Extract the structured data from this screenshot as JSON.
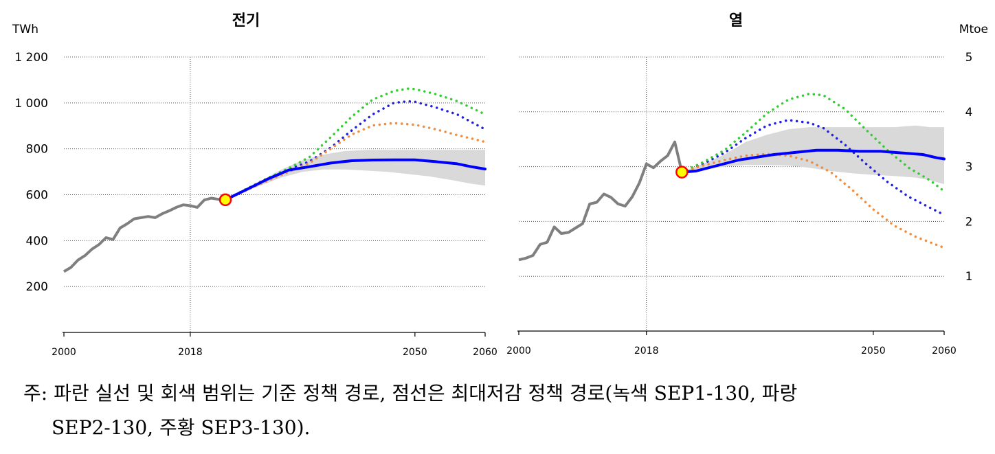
{
  "chart_data": [
    {
      "type": "line",
      "title": "전기",
      "unit": "TWh",
      "x_ticks": [
        "2000",
        "2018",
        "2050",
        "2060"
      ],
      "y_ticks": [
        "200",
        "400",
        "600",
        "800",
        "1 000",
        "1 200"
      ],
      "xlim": [
        2000,
        2060
      ],
      "ylim": [
        0,
        1200
      ],
      "grid": true,
      "marker": {
        "x": 2023,
        "y": 578
      },
      "history": {
        "x": [
          2000,
          2001,
          2002,
          2003,
          2004,
          2005,
          2006,
          2007,
          2008,
          2009,
          2010,
          2011,
          2012,
          2013,
          2014,
          2015,
          2016,
          2017,
          2018,
          2019,
          2020,
          2021,
          2022,
          2023
        ],
        "y": [
          265,
          283,
          315,
          335,
          363,
          383,
          413,
          405,
          455,
          473,
          495,
          500,
          505,
          500,
          517,
          530,
          545,
          556,
          552,
          545,
          577,
          585,
          580,
          578
        ]
      },
      "range": {
        "x": [
          2023,
          2025,
          2028,
          2031,
          2034,
          2037,
          2040,
          2043,
          2046,
          2049,
          2052,
          2055,
          2058,
          2060
        ],
        "upper": [
          578,
          608,
          660,
          710,
          750,
          775,
          790,
          795,
          795,
          795,
          795,
          795,
          795,
          795
        ],
        "lower": [
          578,
          605,
          640,
          675,
          700,
          710,
          710,
          705,
          700,
          690,
          680,
          665,
          648,
          640
        ]
      },
      "series": [
        {
          "x": [
            2023,
            2026,
            2029,
            2032,
            2035,
            2038,
            2041,
            2044,
            2047,
            2050,
            2053,
            2056,
            2058,
            2060
          ],
          "y": [
            578,
            622,
            668,
            707,
            722,
            738,
            748,
            751,
            752,
            752,
            744,
            735,
            722,
            712
          ]
        },
        {
          "x": [
            2023,
            2026,
            2029,
            2032,
            2035,
            2038,
            2041,
            2044,
            2047,
            2049,
            2050,
            2053,
            2056,
            2060
          ],
          "y": [
            578,
            625,
            672,
            710,
            745,
            805,
            880,
            950,
            1000,
            1007,
            1005,
            980,
            950,
            885
          ]
        },
        {
          "x": [
            2023,
            2026,
            2029,
            2032,
            2035,
            2038,
            2041,
            2044,
            2047,
            2049,
            2050,
            2053,
            2056,
            2060
          ],
          "y": [
            578,
            625,
            672,
            715,
            765,
            850,
            940,
            1015,
            1052,
            1062,
            1060,
            1038,
            1008,
            950
          ]
        },
        {
          "x": [
            2023,
            2026,
            2029,
            2032,
            2035,
            2038,
            2041,
            2044,
            2047,
            2050,
            2053,
            2056,
            2060
          ],
          "y": [
            578,
            620,
            660,
            700,
            738,
            800,
            862,
            902,
            912,
            905,
            885,
            860,
            830
          ]
        }
      ]
    },
    {
      "type": "line",
      "title": "열",
      "unit": "Mtoe",
      "x_ticks": [
        "2000",
        "2018",
        "2050",
        "2060"
      ],
      "y_ticks": [
        "1",
        "2",
        "3",
        "4",
        "5"
      ],
      "xlim": [
        2000,
        2060
      ],
      "ylim": [
        0,
        5
      ],
      "grid": true,
      "marker": {
        "x": 2023,
        "y": 2.9
      },
      "history": {
        "x": [
          2000,
          2001,
          2002,
          2003,
          2004,
          2005,
          2006,
          2007,
          2008,
          2009,
          2010,
          2011,
          2012,
          2013,
          2014,
          2015,
          2016,
          2017,
          2018,
          2019,
          2020,
          2021,
          2022,
          2023
        ],
        "y": [
          1.3,
          1.33,
          1.38,
          1.58,
          1.62,
          1.9,
          1.78,
          1.8,
          1.88,
          1.96,
          2.32,
          2.35,
          2.5,
          2.44,
          2.32,
          2.28,
          2.45,
          2.7,
          3.05,
          2.98,
          3.1,
          3.2,
          3.45,
          2.9
        ]
      },
      "range": {
        "x": [
          2023,
          2026,
          2029,
          2032,
          2035,
          2038,
          2041,
          2044,
          2047,
          2050,
          2053,
          2056,
          2058,
          2060
        ],
        "upper": [
          2.9,
          3.05,
          3.22,
          3.45,
          3.58,
          3.68,
          3.72,
          3.72,
          3.72,
          3.72,
          3.72,
          3.75,
          3.72,
          3.72
        ],
        "lower": [
          2.9,
          2.95,
          3.0,
          3.03,
          3.03,
          3.02,
          2.98,
          2.92,
          2.88,
          2.85,
          2.83,
          2.8,
          2.75,
          2.68
        ]
      },
      "series": [
        {
          "x": [
            2023,
            2025,
            2028,
            2031,
            2034,
            2036,
            2039,
            2042,
            2045,
            2048,
            2051,
            2054,
            2057,
            2059,
            2060
          ],
          "y": [
            2.9,
            2.92,
            3.02,
            3.12,
            3.18,
            3.22,
            3.26,
            3.3,
            3.3,
            3.28,
            3.28,
            3.25,
            3.22,
            3.16,
            3.14
          ]
        },
        {
          "x": [
            2023,
            2026,
            2029,
            2032,
            2035,
            2038,
            2041,
            2043,
            2046,
            2049,
            2052,
            2055,
            2058,
            2060
          ],
          "y": [
            2.9,
            3.05,
            3.25,
            3.52,
            3.75,
            3.85,
            3.8,
            3.7,
            3.4,
            3.05,
            2.72,
            2.45,
            2.25,
            2.12
          ]
        },
        {
          "x": [
            2023,
            2026,
            2029,
            2032,
            2035,
            2038,
            2041,
            2043,
            2046,
            2049,
            2052,
            2055,
            2058,
            2060
          ],
          "y": [
            2.9,
            3.08,
            3.3,
            3.62,
            3.97,
            4.22,
            4.33,
            4.3,
            4.05,
            3.67,
            3.3,
            2.98,
            2.75,
            2.55
          ]
        },
        {
          "x": [
            2023,
            2026,
            2029,
            2032,
            2035,
            2038,
            2041,
            2044,
            2047,
            2050,
            2053,
            2056,
            2060
          ],
          "y": [
            2.9,
            3.02,
            3.12,
            3.2,
            3.23,
            3.2,
            3.1,
            2.9,
            2.58,
            2.22,
            1.92,
            1.72,
            1.52
          ]
        }
      ]
    }
  ],
  "colors": {
    "history": "#7f7f7f",
    "range": "#d9d9d9",
    "base": "#0000ff",
    "sep2": "#1f1fe0",
    "sep1": "#33cc33",
    "sep3": "#f08c3c",
    "marker_fill": "#ffff00",
    "marker_edge": "#ff0000"
  },
  "note": {
    "line1": "주: 파란 실선 및 회색 범위는 기준 정책 경로, 점선은 최대저감 정책 경로(녹색 SEP1-130, 파랑",
    "line2": "SEP2-130, 주황 SEP3-130)."
  }
}
